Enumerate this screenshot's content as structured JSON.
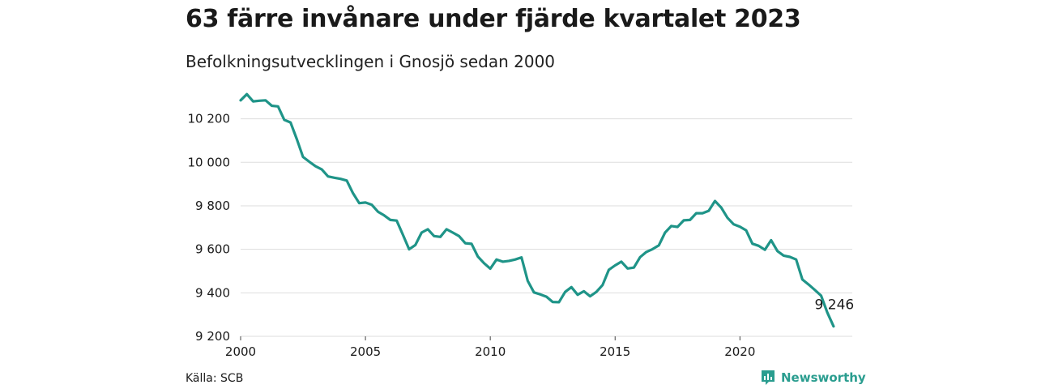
{
  "title": "63 färre invånare under fjärde kvartalet 2023",
  "subtitle": "Befolkningsutvecklingen i Gnosjö sedan 2000",
  "source": "Källa: SCB",
  "brand": {
    "name": "Newsworthy",
    "icon": "bar-chart-icon"
  },
  "colors": {
    "line": "#1f9488",
    "grid": "#dddddd",
    "brand": "#2a9d8f"
  },
  "chart_data": {
    "type": "line",
    "title": "63 färre invånare under fjärde kvartalet 2023",
    "subtitle": "Befolkningsutvecklingen i Gnosjö sedan 2000",
    "xlabel": "",
    "ylabel": "",
    "xlim": [
      2000,
      2024.5
    ],
    "ylim": [
      9200,
      10340
    ],
    "x_ticks": [
      2000,
      2005,
      2010,
      2015,
      2020
    ],
    "x_tick_labels": [
      "2000",
      "2005",
      "2010",
      "2015",
      "2020"
    ],
    "y_ticks": [
      9200,
      9400,
      9600,
      9800,
      10000,
      10200
    ],
    "y_tick_labels": [
      "9 200",
      "9 400",
      "9 600",
      "9 800",
      "10 000",
      "10 200"
    ],
    "grid": "horizontal",
    "series": [
      {
        "name": "",
        "x": [
          2000.0,
          2000.25,
          2000.5,
          2000.75,
          2001.0,
          2001.25,
          2001.5,
          2001.75,
          2002.0,
          2002.25,
          2002.5,
          2002.75,
          2003.0,
          2003.25,
          2003.5,
          2003.75,
          2004.0,
          2004.25,
          2004.5,
          2004.75,
          2005.0,
          2005.25,
          2005.5,
          2005.75,
          2006.0,
          2006.25,
          2006.5,
          2006.75,
          2007.0,
          2007.25,
          2007.5,
          2007.75,
          2008.0,
          2008.25,
          2008.5,
          2008.75,
          2009.0,
          2009.25,
          2009.5,
          2009.75,
          2010.0,
          2010.25,
          2010.5,
          2010.75,
          2011.0,
          2011.25,
          2011.5,
          2011.75,
          2012.0,
          2012.25,
          2012.5,
          2012.75,
          2013.0,
          2013.25,
          2013.5,
          2013.75,
          2014.0,
          2014.25,
          2014.5,
          2014.75,
          2015.0,
          2015.25,
          2015.5,
          2015.75,
          2016.0,
          2016.25,
          2016.5,
          2016.75,
          2017.0,
          2017.25,
          2017.5,
          2017.75,
          2018.0,
          2018.25,
          2018.5,
          2018.75,
          2019.0,
          2019.25,
          2019.5,
          2019.75,
          2020.0,
          2020.25,
          2020.5,
          2020.75,
          2021.0,
          2021.25,
          2021.5,
          2021.75,
          2022.0,
          2022.25,
          2022.5,
          2022.75,
          2023.0,
          2023.25,
          2023.5,
          2023.75
        ],
        "values": [
          10285,
          10313,
          10280,
          10283,
          10285,
          10260,
          10257,
          10195,
          10183,
          10107,
          10025,
          10003,
          9982,
          9967,
          9935,
          9929,
          9924,
          9916,
          9858,
          9812,
          9815,
          9805,
          9773,
          9756,
          9735,
          9732,
          9667,
          9600,
          9620,
          9677,
          9692,
          9661,
          9657,
          9692,
          9677,
          9661,
          9628,
          9625,
          9567,
          9536,
          9511,
          9553,
          9543,
          9547,
          9553,
          9563,
          9455,
          9402,
          9393,
          9382,
          9358,
          9357,
          9404,
          9426,
          9391,
          9407,
          9384,
          9404,
          9436,
          9506,
          9526,
          9543,
          9512,
          9516,
          9564,
          9588,
          9601,
          9618,
          9677,
          9707,
          9703,
          9733,
          9735,
          9766,
          9766,
          9777,
          9822,
          9792,
          9745,
          9715,
          9704,
          9687,
          9626,
          9616,
          9598,
          9642,
          9592,
          9571,
          9565,
          9553,
          9461,
          9438,
          9413,
          9387,
          9309,
          9246
        ]
      }
    ],
    "annotations": [
      {
        "x": 2023.75,
        "y": 9246,
        "text": "9 246"
      }
    ]
  }
}
